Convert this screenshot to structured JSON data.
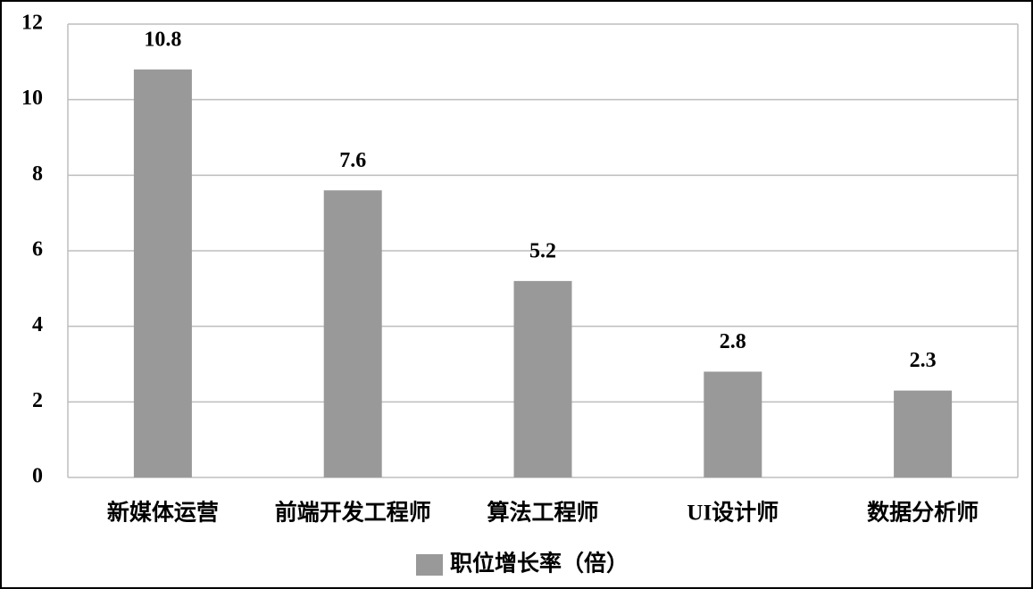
{
  "chart_data": {
    "type": "bar",
    "categories": [
      "新媒体运营",
      "前端开发工程师",
      "算法工程师",
      "UI设计师",
      "数据分析师"
    ],
    "series": [
      {
        "name": "职位增长率（倍）",
        "color": "#999999",
        "values": [
          10.8,
          7.6,
          5.2,
          2.8,
          2.3
        ]
      }
    ],
    "ylim": [
      0,
      12
    ],
    "yticks": [
      0,
      2,
      4,
      6,
      8,
      10,
      12
    ],
    "grid": true,
    "legend": "bottom"
  }
}
